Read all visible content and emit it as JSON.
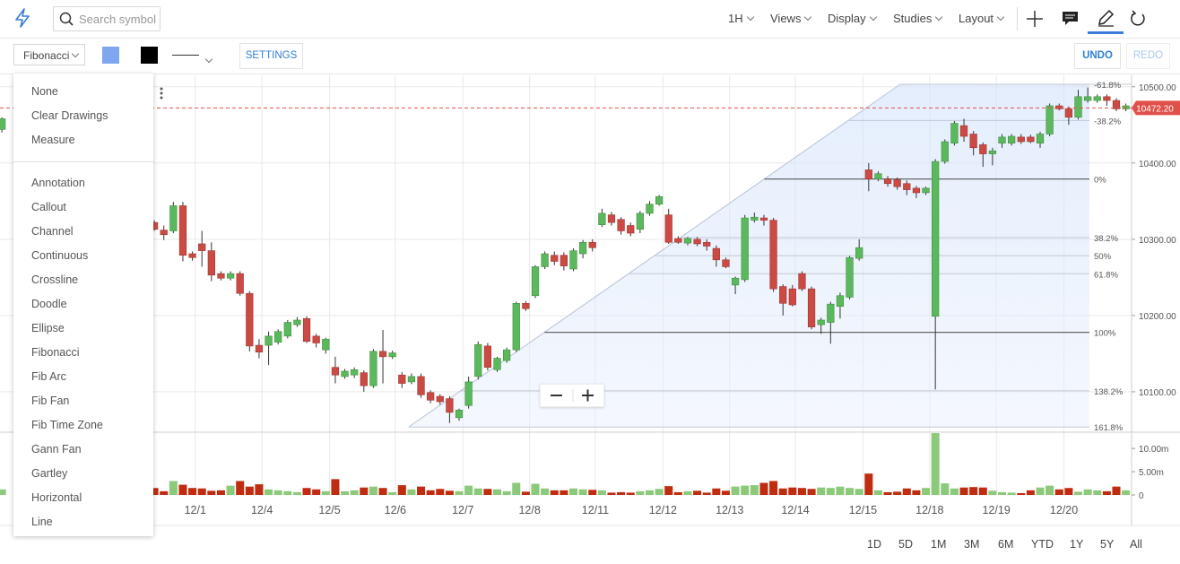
{
  "toolbar": {
    "search_placeholder": "Search symbol",
    "interval": "1H",
    "menus": [
      "Views",
      "Display",
      "Studies",
      "Layout"
    ]
  },
  "drawing_toolbar": {
    "tool": "Fibonacci",
    "fill_color": "#7fa7f0",
    "line_color": "#000000",
    "settings": "SETTINGS",
    "undo": "UNDO",
    "redo": "REDO"
  },
  "drawing_menu": {
    "actions": [
      "None",
      "Clear Drawings",
      "Measure"
    ],
    "tools": [
      "Annotation",
      "Callout",
      "Channel",
      "Continuous",
      "Crossline",
      "Doodle",
      "Ellipse",
      "Fibonacci",
      "Fib Arc",
      "Fib Fan",
      "Fib Time Zone",
      "Gann Fan",
      "Gartley",
      "Horizontal",
      "Line"
    ]
  },
  "range_buttons": [
    "1D",
    "5D",
    "1M",
    "3M",
    "6M",
    "YTD",
    "1Y",
    "5Y",
    "All"
  ],
  "chart_data": {
    "type": "candlestick",
    "up_color": "#5cb85c",
    "down_color": "#cc4a44",
    "volume_up_color": "#8cc97a",
    "volume_down_color": "#bf2c10",
    "grid": true,
    "xlim": [
      -0.2,
      118.6
    ],
    "ylim": [
      10047,
      10515
    ],
    "vlim": [
      0,
      13.5
    ],
    "yticks": [
      {
        "value": 10500,
        "label": "10500.00"
      },
      {
        "value": 10400,
        "label": "10400.00"
      },
      {
        "value": 10300,
        "label": "10300.00"
      },
      {
        "value": 10200,
        "label": "10200.00"
      },
      {
        "value": 10100,
        "label": "10100.00"
      }
    ],
    "vticks": [
      {
        "value": 10,
        "label": "10.00m"
      },
      {
        "value": 5,
        "label": "5.00m"
      },
      0
    ],
    "xticks": [
      {
        "value": 20.3,
        "label": "12/1"
      },
      {
        "value": 27.3,
        "label": "12/4"
      },
      {
        "value": 34.4,
        "label": "12/5"
      },
      {
        "value": 41.3,
        "label": "12/6"
      },
      {
        "value": 48.4,
        "label": "12/7"
      },
      {
        "value": 55.4,
        "label": "12/8"
      },
      {
        "value": 62.3,
        "label": "12/11"
      },
      {
        "value": 69.4,
        "label": "12/12"
      },
      {
        "value": 76.4,
        "label": "12/13"
      },
      {
        "value": 83.3,
        "label": "12/14"
      },
      {
        "value": 90.4,
        "label": "12/15"
      },
      {
        "value": 97.4,
        "label": "12/18"
      },
      {
        "value": 104.4,
        "label": "12/19"
      },
      {
        "value": 111.5,
        "label": "12/20"
      }
    ],
    "last_price": {
      "value": 10472.2,
      "label": "10472.20"
    },
    "fib": {
      "x": [
        42.7,
        94.3
      ],
      "start_price": 10379,
      "end_price": 10178,
      "levels": [
        {
          "value": -61.8,
          "label": "-61.8%"
        },
        {
          "value": -38.2,
          "label": "-38.2%"
        },
        {
          "value": 0,
          "label": "0%"
        },
        {
          "value": 38.2,
          "label": "38.2%"
        },
        {
          "value": 50,
          "label": "50%"
        },
        {
          "value": 61.8,
          "label": "61.8%"
        },
        {
          "value": 100,
          "label": "100%"
        },
        {
          "value": 138.2,
          "label": "138.2%"
        },
        {
          "value": 161.8,
          "label": "161.8%"
        }
      ]
    },
    "x": [
      0,
      16,
      17,
      18,
      19,
      20,
      21,
      22,
      23,
      24,
      25,
      26,
      27,
      28,
      29,
      30,
      31,
      32,
      33,
      34,
      35,
      36,
      37,
      38,
      39,
      40,
      41,
      42,
      43,
      44,
      45,
      46,
      47,
      48,
      49,
      50,
      51,
      52,
      53,
      54,
      55,
      56,
      57,
      58,
      59,
      60,
      61,
      62,
      63,
      64,
      65,
      66,
      67,
      68,
      69,
      70,
      71,
      72,
      73,
      74,
      75,
      76,
      77,
      78,
      79,
      80,
      81,
      82,
      83,
      84,
      85,
      86,
      87,
      88,
      89,
      90,
      91,
      92,
      93,
      94,
      95,
      96,
      97,
      98,
      99,
      100,
      101,
      102,
      103,
      104,
      105,
      106,
      107,
      108,
      109,
      110,
      111,
      112,
      113,
      114,
      115,
      116,
      117,
      118
    ],
    "open": [
      10444,
      10322,
      10312,
      10311,
      10344,
      10281,
      10294,
      10285,
      10255,
      10249,
      10255,
      10229,
      10161,
      10161,
      10165,
      10173,
      10188,
      10196,
      10173,
      10155,
      10132,
      10120,
      10122,
      10125,
      10108,
      10153,
      10146,
      10122,
      10113,
      10120,
      10099,
      10094,
      10091,
      10066,
      10082,
      10120,
      10160,
      10129,
      10141,
      10155,
      10216,
      10226,
      10264,
      10279,
      10279,
      10261,
      10281,
      10296,
      10319,
      10332,
      10326,
      10318,
      10313,
      10334,
      10346,
      10332,
      10301,
      10295,
      10300,
      10296,
      10288,
      10273,
      10240,
      10247,
      10325,
      10328,
      10325,
      10238,
      10235,
      10255,
      10235,
      10188,
      10191,
      10212,
      10224,
      10275,
      10391,
      10379,
      10379,
      10378,
      10373,
      10367,
      10361,
      10199,
      10402,
      10426,
      10449,
      10438,
      10424,
      10412,
      10426,
      10426,
      10434,
      10434,
      10426,
      10438,
      10475,
      10471,
      10460,
      10482,
      10482,
      10487,
      10482,
      10471
    ],
    "high": [
      10460,
      10325,
      10318,
      10349,
      10349,
      10284,
      10311,
      10296,
      10258,
      10258,
      10258,
      10232,
      10169,
      10179,
      10182,
      10194,
      10198,
      10199,
      10176,
      10171,
      10146,
      10130,
      10132,
      10128,
      10156,
      10181,
      10154,
      10126,
      10124,
      10124,
      10102,
      10097,
      10094,
      10078,
      10120,
      10166,
      10164,
      10146,
      10158,
      10218,
      10219,
      10266,
      10284,
      10284,
      10283,
      10288,
      10299,
      10300,
      10340,
      10336,
      10329,
      10322,
      10337,
      10350,
      10358,
      10340,
      10304,
      10303,
      10303,
      10300,
      10292,
      10276,
      10251,
      10332,
      10335,
      10332,
      10328,
      10241,
      10240,
      10258,
      10238,
      10197,
      10218,
      10230,
      10278,
      10300,
      10400,
      10389,
      10383,
      10381,
      10377,
      10370,
      10369,
      10405,
      10431,
      10455,
      10458,
      10442,
      10427,
      10420,
      10438,
      10438,
      10438,
      10437,
      10441,
      10478,
      10478,
      10474,
      10496,
      10499,
      10490,
      10490,
      10485,
      10478
    ],
    "low": [
      10440,
      10311,
      10299,
      10308,
      10271,
      10272,
      10264,
      10245,
      10246,
      10246,
      10226,
      10153,
      10144,
      10135,
      10162,
      10170,
      10185,
      10164,
      10158,
      10150,
      10111,
      10117,
      10118,
      10100,
      10105,
      10111,
      10143,
      10105,
      10110,
      10092,
      10085,
      10083,
      10059,
      10062,
      10078,
      10116,
      10128,
      10126,
      10138,
      10152,
      10206,
      10223,
      10261,
      10266,
      10259,
      10258,
      10275,
      10284,
      10316,
      10318,
      10306,
      10304,
      10308,
      10331,
      10344,
      10294,
      10294,
      10292,
      10291,
      10285,
      10264,
      10262,
      10228,
      10244,
      10322,
      10318,
      10231,
      10200,
      10212,
      10232,
      10182,
      10176,
      10163,
      10196,
      10221,
      10272,
      10363,
      10376,
      10369,
      10365,
      10358,
      10354,
      10358,
      10103,
      10399,
      10423,
      10428,
      10410,
      10395,
      10397,
      10420,
      10423,
      10425,
      10426,
      10420,
      10435,
      10469,
      10450,
      10457,
      10479,
      10479,
      10475,
      10468,
      10468
    ],
    "close": [
      10458,
      10313,
      10306,
      10344,
      10279,
      10276,
      10285,
      10253,
      10249,
      10255,
      10229,
      10160,
      10152,
      10173,
      10179,
      10191,
      10194,
      10166,
      10164,
      10169,
      10122,
      10127,
      10129,
      10108,
      10153,
      10146,
      10151,
      10111,
      10120,
      10096,
      10089,
      10087,
      10073,
      10076,
      10113,
      10162,
      10132,
      10144,
      10155,
      10216,
      10209,
      10264,
      10281,
      10271,
      10265,
      10285,
      10296,
      10289,
      10334,
      10322,
      10311,
      10308,
      10334,
      10346,
      10356,
      10296,
      10296,
      10301,
      10294,
      10291,
      10273,
      10264,
      10249,
      10328,
      10329,
      10325,
      10235,
      10216,
      10214,
      10235,
      10185,
      10194,
      10215,
      10226,
      10276,
      10289,
      10379,
      10386,
      10373,
      10369,
      10365,
      10361,
      10367,
      10402,
      10428,
      10452,
      10435,
      10420,
      10412,
      10416,
      10434,
      10435,
      10428,
      10428,
      10438,
      10475,
      10471,
      10460,
      10487,
      10487,
      10487,
      10482,
      10471,
      10475
    ],
    "volume": [
      1.2,
      1.5,
      0.8,
      3.0,
      2.2,
      1.5,
      1.4,
      0.9,
      1.0,
      2.0,
      3.0,
      1.8,
      2.3,
      1.2,
      1.0,
      0.8,
      0.6,
      1.5,
      1.2,
      0.8,
      3.4,
      0.8,
      1.0,
      1.6,
      1.8,
      1.5,
      0.6,
      2.1,
      1.2,
      1.8,
      1.0,
      1.3,
      0.9,
      0.8,
      2.0,
      1.4,
      1.3,
      1.2,
      0.8,
      2.6,
      0.7,
      2.4,
      1.4,
      1.0,
      1.0,
      1.4,
      1.2,
      1.1,
      1.0,
      0.5,
      0.6,
      0.5,
      0.8,
      1.0,
      1.3,
      1.9,
      0.6,
      0.8,
      0.9,
      0.5,
      1.4,
      0.9,
      1.8,
      2.0,
      2.1,
      2.6,
      3.0,
      1.4,
      1.6,
      1.5,
      1.3,
      1.6,
      1.5,
      1.8,
      1.5,
      1.3,
      4.6,
      1.0,
      0.6,
      0.7,
      1.4,
      1.0,
      1.5,
      13.3,
      2.5,
      1.4,
      1.6,
      1.7,
      1.6,
      0.9,
      0.6,
      0.5,
      0.4,
      1.0,
      1.6,
      2.0,
      1.2,
      1.5,
      0.7,
      1.2,
      1.0,
      0.8,
      1.8,
      1.0
    ]
  }
}
